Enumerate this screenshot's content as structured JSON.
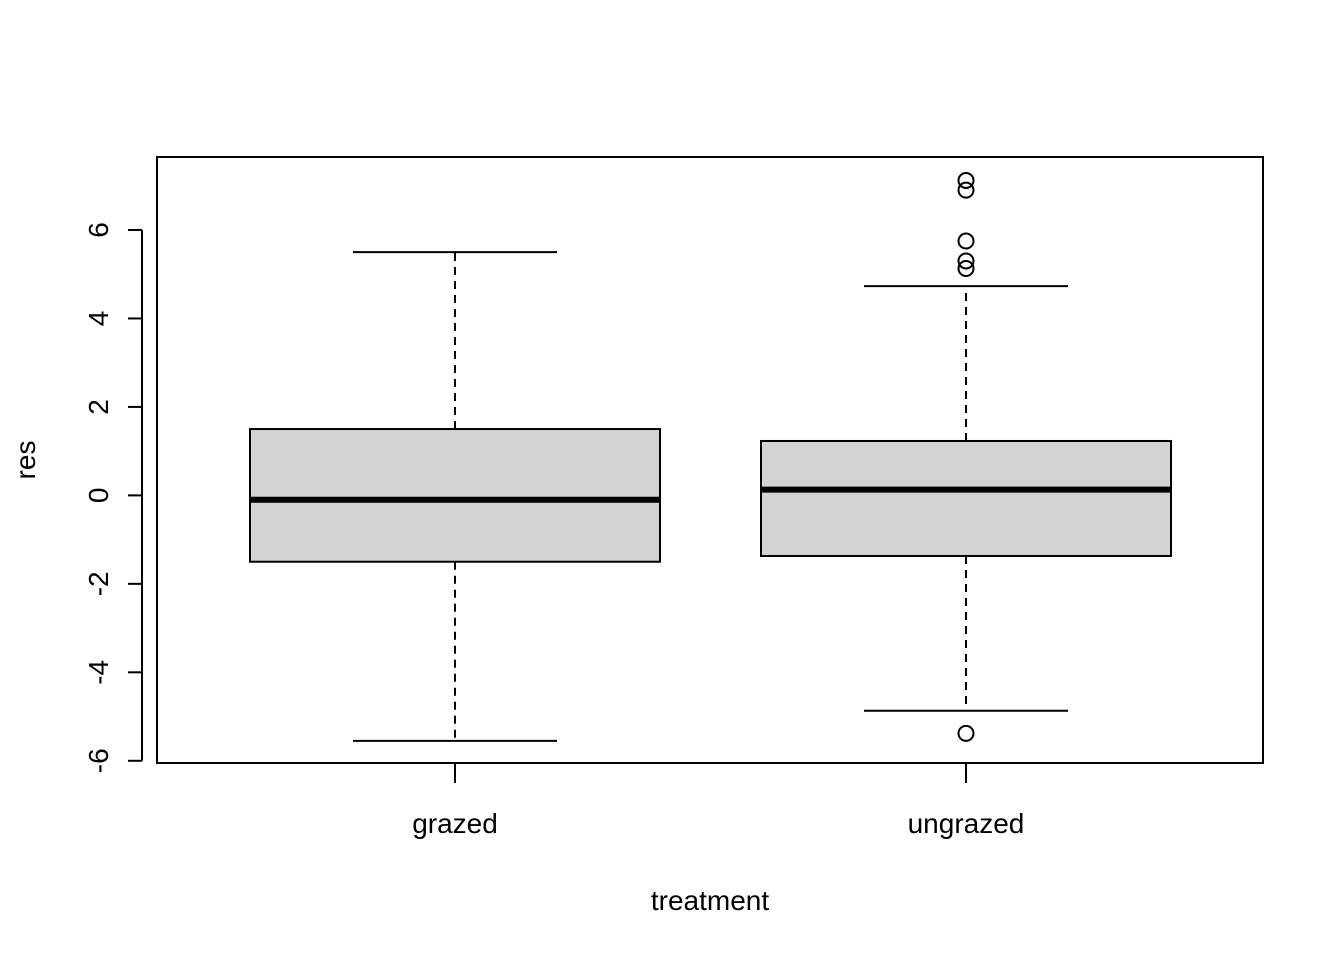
{
  "chart_data": {
    "type": "boxplot",
    "xlabel": "treatment",
    "ylabel": "res",
    "ylim": [
      -6.05,
      7.65
    ],
    "yticks": [
      -6,
      -4,
      -2,
      0,
      2,
      4,
      6
    ],
    "grid": false,
    "legend": "none",
    "box_fill": "#d3d3d3",
    "categories": [
      "grazed",
      "ungrazed"
    ],
    "boxes": [
      {
        "name": "grazed",
        "whisker_low": -5.55,
        "q1": -1.5,
        "median": -0.1,
        "q3": 1.5,
        "whisker_high": 5.5,
        "outliers": []
      },
      {
        "name": "ungrazed",
        "whisker_low": -4.87,
        "q1": -1.37,
        "median": 0.13,
        "q3": 1.23,
        "whisker_high": 4.73,
        "outliers": [
          7.12,
          6.9,
          5.75,
          5.3,
          5.13,
          -5.38
        ]
      }
    ]
  }
}
